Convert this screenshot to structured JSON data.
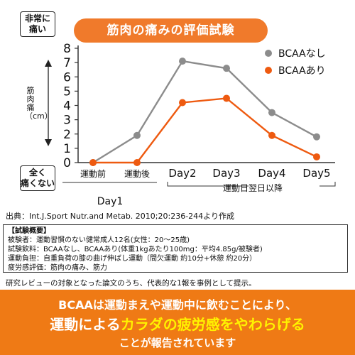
{
  "header": {
    "title": "筋肉の痛みの評価試験",
    "severe_line1": "非常に",
    "severe_line2": "痛い",
    "none_line1": "全く",
    "none_line2": "痛くない"
  },
  "colors": {
    "accent": "#f07a2b",
    "series_none": "#8c8c8c",
    "series_bcaa": "#ee5a10",
    "banner": "#ef7a15",
    "highlight": "#fff200"
  },
  "chart_data": {
    "type": "line",
    "ylabel": "筋肉痛（cm）",
    "ylim": [
      0,
      8
    ],
    "yticks": [
      "0",
      "1",
      "2",
      "3",
      "4",
      "5",
      "6",
      "7",
      "8"
    ],
    "categories": [
      "運動前",
      "運動後",
      "Day2",
      "Day3",
      "Day4",
      "Day5"
    ],
    "groups": [
      {
        "label": "Day1",
        "from": 0,
        "to": 1
      },
      {
        "label": "運動日翌日以降",
        "from": 2,
        "to": 5
      }
    ],
    "legend_position": "top-right",
    "grid": false,
    "series": [
      {
        "name": "BCAAなし",
        "color": "#8c8c8c",
        "values": [
          0,
          1.9,
          7.1,
          6.6,
          3.5,
          1.8
        ]
      },
      {
        "name": "BCAAあり",
        "color": "#ee5a10",
        "values": [
          0,
          0,
          4.2,
          4.5,
          1.9,
          0.4
        ]
      }
    ]
  },
  "source": "出典：Int.J.Sport Nutr.and Metab. 2010;20:236-244より作成",
  "info": {
    "heading": "【試験概要】",
    "lines": [
      "被験者：運動習慣のない健常成人12名(女性：20～25歳)",
      "試験飲料：BCAAなし、BCAAあり(体重1kgあたり100mg：平均4.85g/被験者)",
      "運動負担：自重負荷の膝の曲げ伸ばし運動（間欠運動 約10分+休憩 約20分）",
      "疲労感評価：筋肉の痛み、筋力"
    ]
  },
  "note": "研究レビューの対象となった論文のうち、代表的な1報を事例として提示。",
  "banner": {
    "l1_a": "BCAA",
    "l1_b": "は運動まえや運動中に飲むことにより、",
    "l2_a": "運動による",
    "l2_b": "カラダの疲労感をやわらげる",
    "l3": "ことが報告されています"
  }
}
